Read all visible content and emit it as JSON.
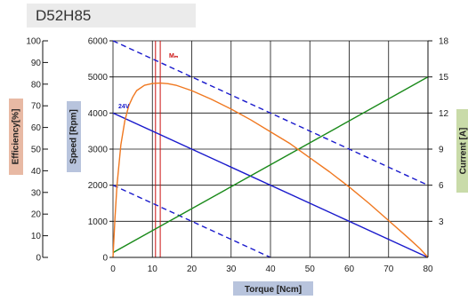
{
  "header": {
    "model": "D52H85"
  },
  "chart_data": {
    "type": "line",
    "title": "",
    "xlabel": "Torque [Ncm]",
    "x_ticks": [
      0,
      10,
      20,
      30,
      40,
      50,
      60,
      70,
      80
    ],
    "xlim": [
      0,
      80
    ],
    "axes": {
      "efficiency": {
        "label": "Efficiency[%]",
        "ticks": [
          0,
          10,
          20,
          30,
          40,
          50,
          60,
          70,
          80,
          90,
          100
        ],
        "range": [
          0,
          100
        ],
        "bg": "#e8b9a4"
      },
      "speed": {
        "label": "Speed [Rpm]",
        "ticks": [
          0,
          1000,
          2000,
          3000,
          4000,
          5000,
          6000
        ],
        "range": [
          0,
          6000
        ],
        "bg": "#b8c4dd"
      },
      "current": {
        "label": "Current [A]",
        "ticks": [
          3,
          6,
          9,
          12,
          15,
          18
        ],
        "range": [
          0,
          18
        ],
        "bg": "#c9dba9"
      }
    },
    "annotations": {
      "voltage": "24V",
      "max_efficiency": "Mₘ"
    },
    "max_efficiency_torque": [
      10.8,
      12.0
    ],
    "series": [
      {
        "role": "speed_24v",
        "axis": "speed",
        "color": "#1a1acc",
        "style": "solid",
        "x": [
          0,
          80
        ],
        "y": [
          4000,
          0
        ]
      },
      {
        "role": "speed_upper",
        "axis": "speed",
        "color": "#1a1acc",
        "style": "dashed",
        "x": [
          0,
          80
        ],
        "y": [
          6000,
          2000
        ]
      },
      {
        "role": "speed_lower",
        "axis": "speed",
        "color": "#1a1acc",
        "style": "dashed",
        "x": [
          0,
          40
        ],
        "y": [
          2000,
          0
        ]
      },
      {
        "role": "current",
        "axis": "current",
        "color": "#1a8a1a",
        "style": "solid",
        "x": [
          0,
          80
        ],
        "y": [
          0.4,
          15
        ]
      },
      {
        "role": "efficiency",
        "axis": "efficiency",
        "color": "#f07820",
        "style": "solid",
        "x": [
          0,
          0.5,
          1,
          2,
          3,
          4,
          5,
          6,
          8,
          10,
          12,
          14,
          16,
          20,
          25,
          30,
          35,
          40,
          45,
          50,
          55,
          60,
          65,
          70,
          75,
          78,
          80
        ],
        "y": [
          0,
          18,
          33,
          52,
          63,
          70,
          74,
          77,
          79.5,
          80.3,
          80.5,
          80.2,
          79.5,
          77,
          73,
          68.5,
          63.5,
          58,
          52.5,
          46,
          39.5,
          32.5,
          25,
          17,
          9,
          4,
          0
        ]
      }
    ]
  }
}
